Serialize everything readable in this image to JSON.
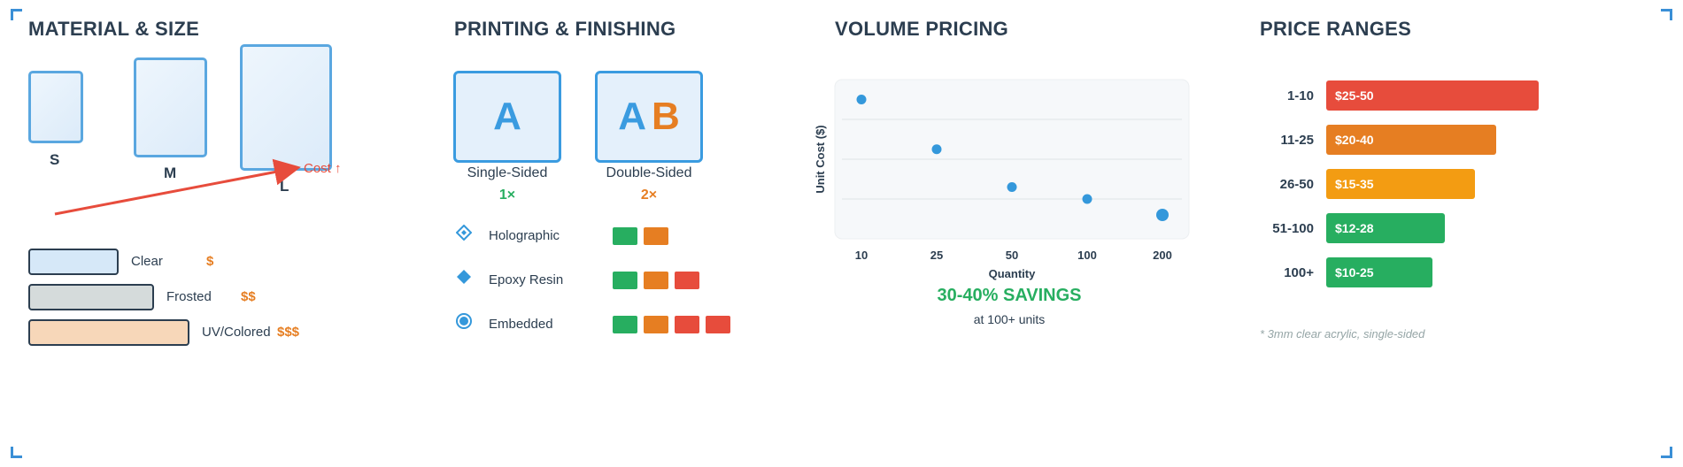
{
  "sections": {
    "material": "MATERIAL & SIZE",
    "printing": "PRINTING & FINISHING",
    "volume": "VOLUME PRICING",
    "ranges": "PRICE RANGES"
  },
  "sizes": [
    {
      "label": "S"
    },
    {
      "label": "M"
    },
    {
      "label": "L"
    }
  ],
  "cost_arrow_label": "Cost ↑",
  "materials": [
    {
      "label": "Clear",
      "cost": "$",
      "color": "#d6e8f8"
    },
    {
      "label": "Frosted",
      "cost": "$$",
      "color": "#d5dbdb"
    },
    {
      "label": "UV/Colored",
      "cost": "$$$",
      "color": "#f7d7b9"
    }
  ],
  "printing": {
    "single": {
      "glyph": "A",
      "label": "Single-Sided",
      "multiplier": "1×",
      "color": "#27ae60"
    },
    "double": {
      "glyph1": "A",
      "glyph2": "B",
      "label": "Double-Sided",
      "multiplier": "2×",
      "color": "#e67e22"
    }
  },
  "finishes": [
    {
      "label": "Holographic",
      "icon": "diamond-outline-icon",
      "levels": [
        "#27ae60",
        "#e67e22"
      ]
    },
    {
      "label": "Epoxy Resin",
      "icon": "diamond-filled-icon",
      "levels": [
        "#27ae60",
        "#e67e22",
        "#e74c3c"
      ]
    },
    {
      "label": "Embedded",
      "icon": "circle-icon",
      "levels": [
        "#27ae60",
        "#e67e22",
        "#e74c3c",
        "#e74c3c"
      ]
    }
  ],
  "chart_data": {
    "type": "scatter",
    "x": [
      "10",
      "25",
      "50",
      "100",
      "200"
    ],
    "values": [
      9.0,
      6.5,
      4.6,
      4.0,
      3.2
    ],
    "xlabel": "Quantity",
    "ylabel": "Unit Cost ($)",
    "ylim": [
      2,
      10
    ],
    "grid": true,
    "savings_headline": "30-40% SAVINGS",
    "savings_note": "at 100+ units",
    "point_color": "#3498db"
  },
  "price_ranges": {
    "bars": [
      {
        "category": "1-10",
        "label": "$25-50",
        "max": 50,
        "color": "#e74c3c"
      },
      {
        "category": "11-25",
        "label": "$20-40",
        "max": 40,
        "color": "#e67e22"
      },
      {
        "category": "26-50",
        "label": "$15-35",
        "max": 35,
        "color": "#f39c12"
      },
      {
        "category": "51-100",
        "label": "$12-28",
        "max": 28,
        "color": "#27ae60"
      },
      {
        "category": "100+",
        "label": "$10-25",
        "max": 25,
        "color": "#27ae60"
      }
    ],
    "footnote": "* 3mm clear acrylic, single-sided"
  }
}
